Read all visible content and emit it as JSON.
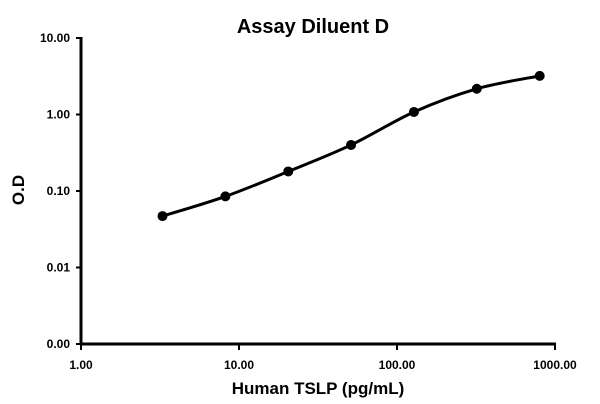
{
  "chart_data": {
    "type": "line",
    "title": "Assay Diluent D",
    "xlabel": "Human TSLP (pg/mL)",
    "ylabel": "O.D",
    "x_scale": "log",
    "y_scale": "log",
    "xlim": [
      1,
      1000
    ],
    "ylim": [
      0.001,
      10
    ],
    "x_ticks": [
      1,
      10,
      100,
      1000
    ],
    "x_tick_labels": [
      "1.00",
      "10.00",
      "100.00",
      "1000.00"
    ],
    "y_ticks": [
      0.001,
      0.01,
      0.1,
      1,
      10
    ],
    "y_tick_labels": [
      "0.00",
      "0.01",
      "0.10",
      "1.00",
      "10.00"
    ],
    "grid": false,
    "legend": "none",
    "series": [
      {
        "color": "#000000",
        "x": [
          3.28,
          8.2,
          20.5,
          51.2,
          128,
          320,
          800
        ],
        "y": [
          0.047,
          0.085,
          0.18,
          0.4,
          1.08,
          2.17,
          3.2
        ]
      }
    ]
  }
}
